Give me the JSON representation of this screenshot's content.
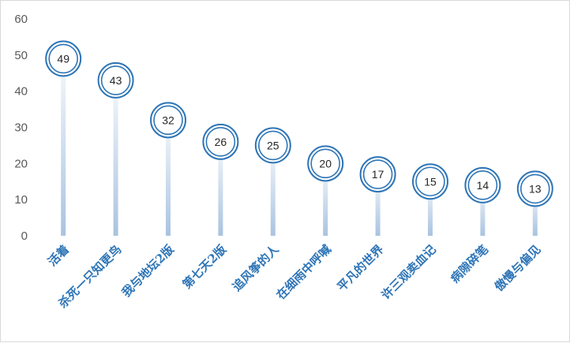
{
  "chart_data": {
    "type": "bar",
    "title": "",
    "xlabel": "",
    "ylabel": "",
    "ylim": [
      0,
      60
    ],
    "yticks": [
      "0",
      "10",
      "20",
      "30",
      "40",
      "50",
      "60"
    ],
    "grid": false,
    "legend": "none",
    "categories": [
      "活着",
      "杀死一只知更鸟",
      "我与地坛2版",
      "第七天2版",
      "追风筝的人",
      "在细雨中呼喊",
      "平凡的世界",
      "许三观卖血记",
      "病隙碎笔",
      "傲慢与偏见"
    ],
    "values": [
      49,
      43,
      32,
      26,
      25,
      20,
      17,
      15,
      14,
      13
    ],
    "colors": {
      "accent": "#2e75b6",
      "bar_top": "#f4f8fc",
      "bar_bottom": "#a9c3e0",
      "axis_text": "#595959"
    }
  }
}
